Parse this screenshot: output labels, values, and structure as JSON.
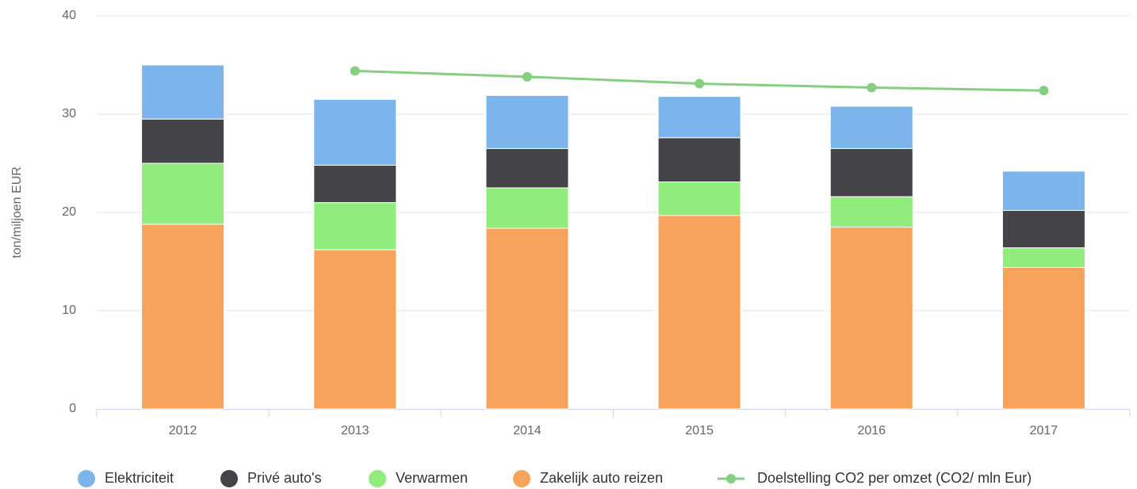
{
  "chart_data": {
    "type": "stacked-bar-line",
    "y_axis_label": "ton/miljoen EUR",
    "categories": [
      "2012",
      "2013",
      "2014",
      "2015",
      "2016",
      "2017"
    ],
    "series": [
      {
        "name": "Elektriciteit",
        "color": "#7cb5ec",
        "type": "bar",
        "values": [
          5.5,
          6.7,
          5.4,
          4.2,
          4.3,
          4.0
        ]
      },
      {
        "name": "Privé auto's",
        "color": "#434348",
        "type": "bar",
        "values": [
          4.5,
          3.8,
          4.0,
          4.5,
          4.9,
          3.8
        ]
      },
      {
        "name": "Verwarmen",
        "color": "#90ed7d",
        "type": "bar",
        "values": [
          6.2,
          4.8,
          4.1,
          3.4,
          3.1,
          2.0
        ]
      },
      {
        "name": "Zakelijk auto reizen",
        "color": "#f7a35c",
        "type": "bar",
        "values": [
          18.8,
          16.2,
          18.4,
          19.7,
          18.5,
          14.4
        ]
      },
      {
        "name": "Doelstelling CO2 per omzet (CO2/ mln Eur)",
        "color": "#86cf80",
        "type": "line",
        "values": [
          null,
          34.4,
          33.8,
          33.1,
          32.7,
          32.4
        ]
      }
    ],
    "ylim": [
      0,
      40
    ],
    "yticks": [
      0,
      10,
      20,
      30,
      40
    ],
    "grid": true
  }
}
